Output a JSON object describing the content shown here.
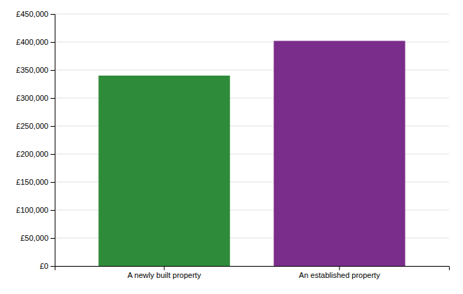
{
  "chart_data": {
    "type": "bar",
    "categories": [
      "A newly built property",
      "An established property"
    ],
    "values": [
      340000,
      402000
    ],
    "colors": [
      "#2e8b3a",
      "#7b2d8b"
    ],
    "ylim": [
      0,
      450000
    ],
    "yticks": [
      {
        "value": 0,
        "label": "£0"
      },
      {
        "value": 50000,
        "label": "£50,000"
      },
      {
        "value": 100000,
        "label": "£100,000"
      },
      {
        "value": 150000,
        "label": "£150,000"
      },
      {
        "value": 200000,
        "label": "£200,000"
      },
      {
        "value": 250000,
        "label": "£250,000"
      },
      {
        "value": 300000,
        "label": "£300,000"
      },
      {
        "value": 350000,
        "label": "£350,000"
      },
      {
        "value": 400000,
        "label": "£400,000"
      },
      {
        "value": 450000,
        "label": "£450,000"
      }
    ],
    "grid": true
  }
}
